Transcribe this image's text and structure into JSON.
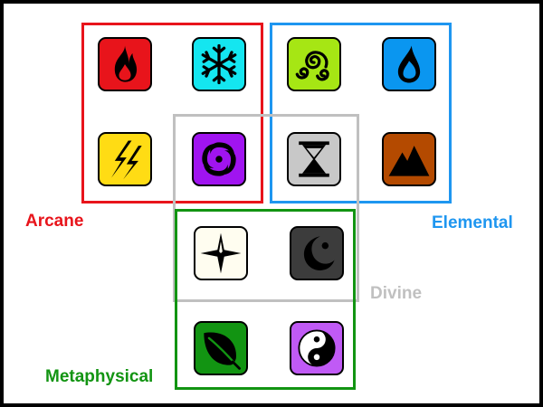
{
  "groups": {
    "arcane": {
      "label": "Arcane",
      "color": "#e8141b"
    },
    "elemental": {
      "label": "Elemental",
      "color": "#1e96f0"
    },
    "divine": {
      "label": "Divine",
      "color": "#c0c0c0"
    },
    "metaphysical": {
      "label": "Metaphysical",
      "color": "#129412"
    }
  },
  "icons": [
    {
      "name": "fire-icon",
      "color": "#e8141b"
    },
    {
      "name": "snowflake-icon",
      "color": "#14e6f0"
    },
    {
      "name": "wind-swirl-icon",
      "color": "#a6e614"
    },
    {
      "name": "water-drop-icon",
      "color": "#0a96f0"
    },
    {
      "name": "lightning-icon",
      "color": "#ffdc14"
    },
    {
      "name": "vortex-icon",
      "color": "#a014f0"
    },
    {
      "name": "hourglass-icon",
      "color": "#c8c8c8"
    },
    {
      "name": "mountain-icon",
      "color": "#b44a00"
    },
    {
      "name": "compass-star-icon",
      "color": "#fffdf0"
    },
    {
      "name": "crescent-moon-icon",
      "color": "#3c3c3c"
    },
    {
      "name": "leaf-icon",
      "color": "#129412"
    },
    {
      "name": "yin-yang-icon",
      "color": "#c05af5"
    }
  ]
}
